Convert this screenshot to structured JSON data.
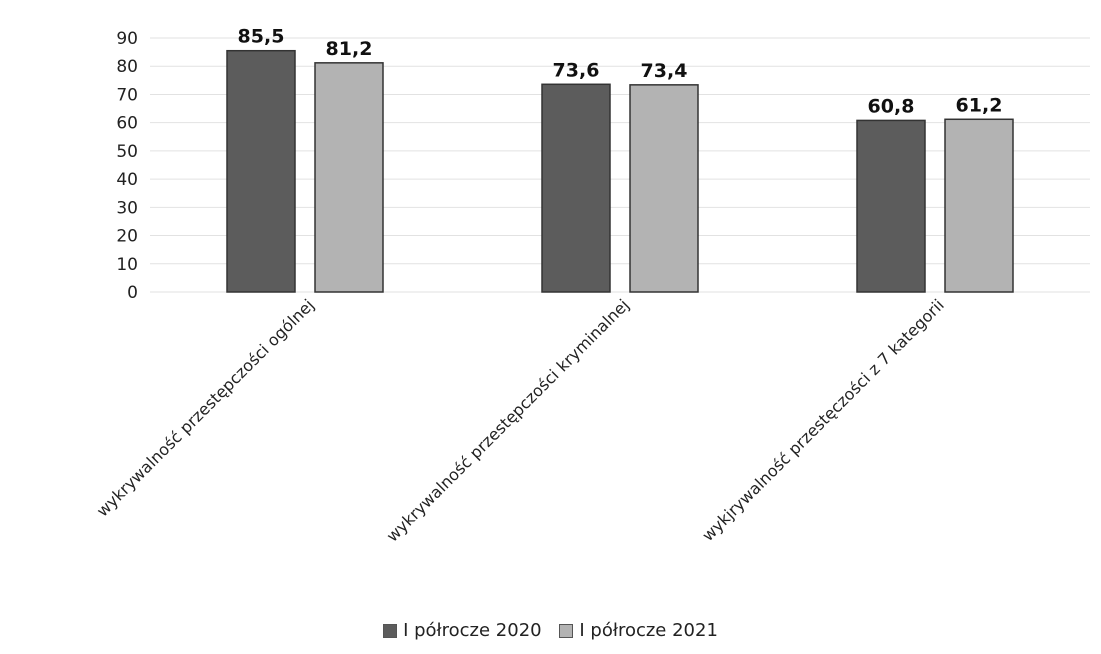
{
  "chart_data": {
    "type": "bar",
    "categories": [
      "wykrywalność przestępczości ogólnej",
      "wykrywalność przestępczości kryminalnej",
      "wykjrywalność przestęczości z 7 kategorii"
    ],
    "series": [
      {
        "name": "I półrocze 2020",
        "values": [
          85.5,
          73.6,
          60.8
        ],
        "labels": [
          "85,5",
          "73,6",
          "60,8"
        ],
        "color": "#5c5c5c"
      },
      {
        "name": "I półrocze 2021",
        "values": [
          81.2,
          73.4,
          61.2
        ],
        "labels": [
          "81,2",
          "73,4",
          "61,2"
        ],
        "color": "#b3b3b3"
      }
    ],
    "yticks": [
      "0",
      "10",
      "20",
      "30",
      "40",
      "50",
      "60",
      "70",
      "80",
      "90"
    ],
    "ylim": [
      0,
      90
    ],
    "grid": true,
    "legend_position": "bottom"
  }
}
